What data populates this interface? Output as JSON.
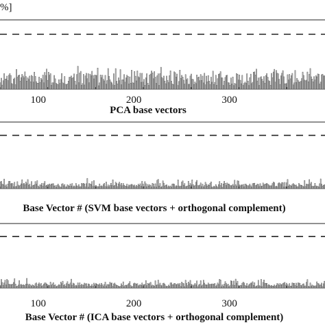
{
  "header_fragment": "%]",
  "chart_data": [
    {
      "type": "bar",
      "xlabel": "PCA base vectors",
      "xlim": [
        60,
        400
      ],
      "ylim": [
        0,
        1
      ],
      "xticks": [
        "100",
        "200",
        "300"
      ],
      "xtick_values": [
        100,
        200,
        300
      ],
      "threshold": 0.8,
      "grid": false,
      "series": [
        {
          "values": []
        }
      ]
    },
    {
      "type": "bar",
      "xlabel": "Base Vector # (SVM base vectors + orthogonal complement)",
      "xlim": [
        60,
        400
      ],
      "ylim": [
        0,
        1
      ],
      "xticks": [],
      "xtick_values": [],
      "threshold": 0.8,
      "grid": false,
      "series": [
        {
          "values": []
        }
      ]
    },
    {
      "type": "bar",
      "xlabel": "Base Vector # (ICA base vectors + orthogonal complement)",
      "xlim": [
        60,
        400
      ],
      "ylim": [
        0,
        1
      ],
      "xticks": [
        "100",
        "200",
        "300"
      ],
      "xtick_values": [
        100,
        200,
        300
      ],
      "threshold": 0.8,
      "grid": false,
      "series": [
        {
          "values": []
        }
      ]
    }
  ]
}
